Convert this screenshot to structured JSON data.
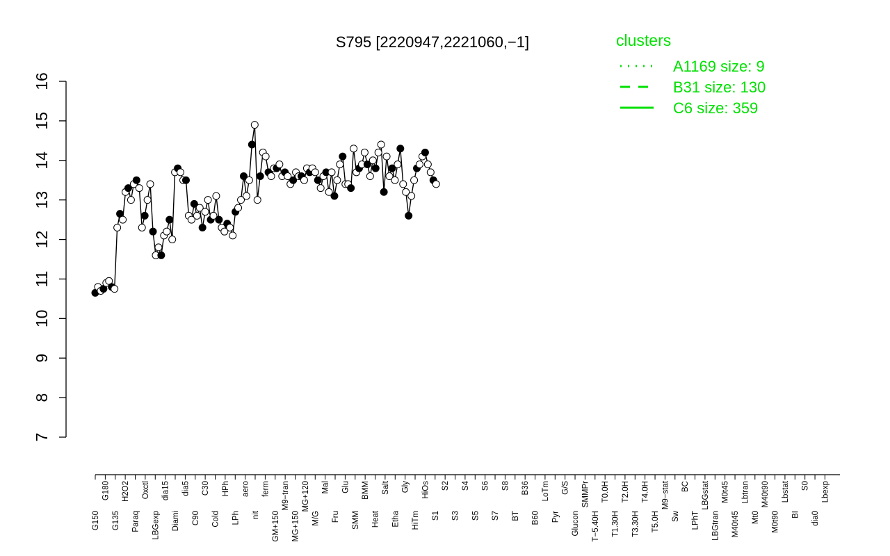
{
  "chart_data": {
    "type": "line",
    "title": "S795 [2220947,2221060,−1]",
    "xlabel": "",
    "ylabel": "",
    "ylim": [
      7,
      16
    ],
    "yticks": [
      7,
      8,
      9,
      10,
      11,
      12,
      13,
      14,
      15,
      16
    ],
    "grid": false,
    "legend": {
      "title": "clusters",
      "position": "top-right",
      "entries": [
        {
          "label": "A1169 size: 9",
          "style": "dotted"
        },
        {
          "label": "B31 size: 130",
          "style": "dashed"
        },
        {
          "label": "C6 size: 359",
          "style": "solid"
        }
      ]
    },
    "x_tick_labels": [
      "G150",
      "G180",
      "G135",
      "H2O2",
      "Paraq",
      "Oxctl",
      "LBGexp",
      "dia15",
      "Diami",
      "dia5",
      "C90",
      "C30",
      "Cold",
      "HPh",
      "LPh",
      "aero",
      "nit",
      "ferm",
      "GM+150",
      "M9−tran",
      "MG+150",
      "MG+120",
      "M/G",
      "Mal",
      "Fru",
      "Glu",
      "SMM",
      "BMM",
      "Heat",
      "Salt",
      "Etha",
      "Gly",
      "HiTm",
      "HiOs",
      "S1",
      "S2",
      "S3",
      "S4",
      "S5",
      "S6",
      "S7",
      "S8",
      "BT",
      "B36",
      "B60",
      "LoTm",
      "Pyr",
      "G/S",
      "Glucon",
      "SMMPr",
      "T−5.40H",
      "T0.0H",
      "T1.30H",
      "T2.0H",
      "T3.30H",
      "T4.0H",
      "T5.0H",
      "M9−stat",
      "Sw",
      "BC",
      "LPhT",
      "LBGstat",
      "LBGtran",
      "M0t45",
      "M40t45",
      "Lbtran",
      "Mt0",
      "M40t90",
      "M0t90",
      "Lbstat",
      "BI",
      "S0",
      "dia0",
      "Lbexp"
    ],
    "x_tick_positions": [
      0,
      2,
      4,
      6,
      8,
      10,
      12,
      14,
      16,
      18,
      20,
      22,
      24,
      26,
      28,
      30,
      32,
      34,
      36,
      38,
      40,
      42,
      44,
      46,
      48,
      50,
      52,
      54,
      56,
      58,
      60,
      62,
      64,
      66,
      68,
      70,
      72,
      74,
      76,
      78,
      80,
      82,
      84,
      86,
      88,
      90,
      92,
      94,
      96,
      98,
      100,
      102,
      104,
      106,
      108,
      110,
      112,
      114,
      116,
      118,
      120,
      122,
      124,
      126,
      128,
      130,
      132,
      134,
      136,
      138,
      140,
      142,
      144,
      146
    ],
    "x_range": [
      0,
      149
    ],
    "series": [
      {
        "marker": "points",
        "values": [
          10.65,
          10.8,
          10.7,
          10.75,
          10.9,
          10.95,
          10.8,
          10.75,
          12.3,
          12.65,
          12.5,
          13.2,
          13.3,
          13.0,
          13.4,
          13.5,
          13.3,
          12.3,
          12.6,
          13.0,
          13.4,
          12.2,
          11.6,
          11.8,
          11.6,
          12.1,
          12.2,
          12.5,
          12.0,
          13.7,
          13.8,
          13.7,
          13.5,
          13.5,
          12.6,
          12.5,
          12.9,
          12.6,
          12.8,
          12.3,
          12.7,
          13.0,
          12.5,
          12.6,
          13.1,
          12.5,
          12.3,
          12.2,
          12.4,
          12.3,
          12.1,
          12.7,
          12.8,
          13.0,
          13.6,
          13.1,
          13.5,
          14.4,
          14.9,
          13.0,
          13.6,
          14.2,
          14.1,
          13.7,
          13.6,
          13.8,
          13.8,
          13.9,
          13.6,
          13.7,
          13.6,
          13.4,
          13.5,
          13.7,
          13.6,
          13.6,
          13.5,
          13.8,
          13.7,
          13.8,
          13.7,
          13.5,
          13.3,
          13.6,
          13.7,
          13.2,
          13.7,
          13.1,
          13.5,
          13.9,
          14.1,
          13.4,
          13.4,
          13.3,
          14.3,
          13.7,
          13.8,
          13.9,
          14.2,
          13.9,
          13.6,
          14.0,
          13.8,
          14.2,
          14.4,
          13.2,
          14.1,
          13.6,
          13.8,
          13.5,
          13.9,
          14.3,
          13.4,
          13.2,
          12.6,
          13.1,
          13.5,
          13.8,
          13.9,
          14.1,
          14.2,
          13.9,
          13.7,
          13.5,
          13.4
        ],
        "x_start": 0,
        "x_step": 0.55
      }
    ]
  }
}
